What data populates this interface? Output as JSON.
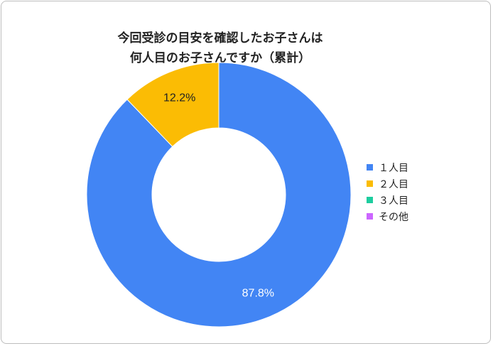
{
  "chart_data": {
    "type": "pie",
    "title_lines": [
      "今回受診の目安を確認したお子さんは",
      "何人目のお子さんですか（累計）"
    ],
    "categories": [
      "１人目",
      "２人目",
      "３人目",
      "その他"
    ],
    "values": [
      87.8,
      12.2,
      0,
      0
    ],
    "labels": [
      "87.8%",
      "12.2%",
      "",
      ""
    ],
    "colors": [
      "#4285f4",
      "#fbbc04",
      "#1dcd9f",
      "#cc66ff"
    ],
    "donut": true,
    "legend_position": "right"
  }
}
